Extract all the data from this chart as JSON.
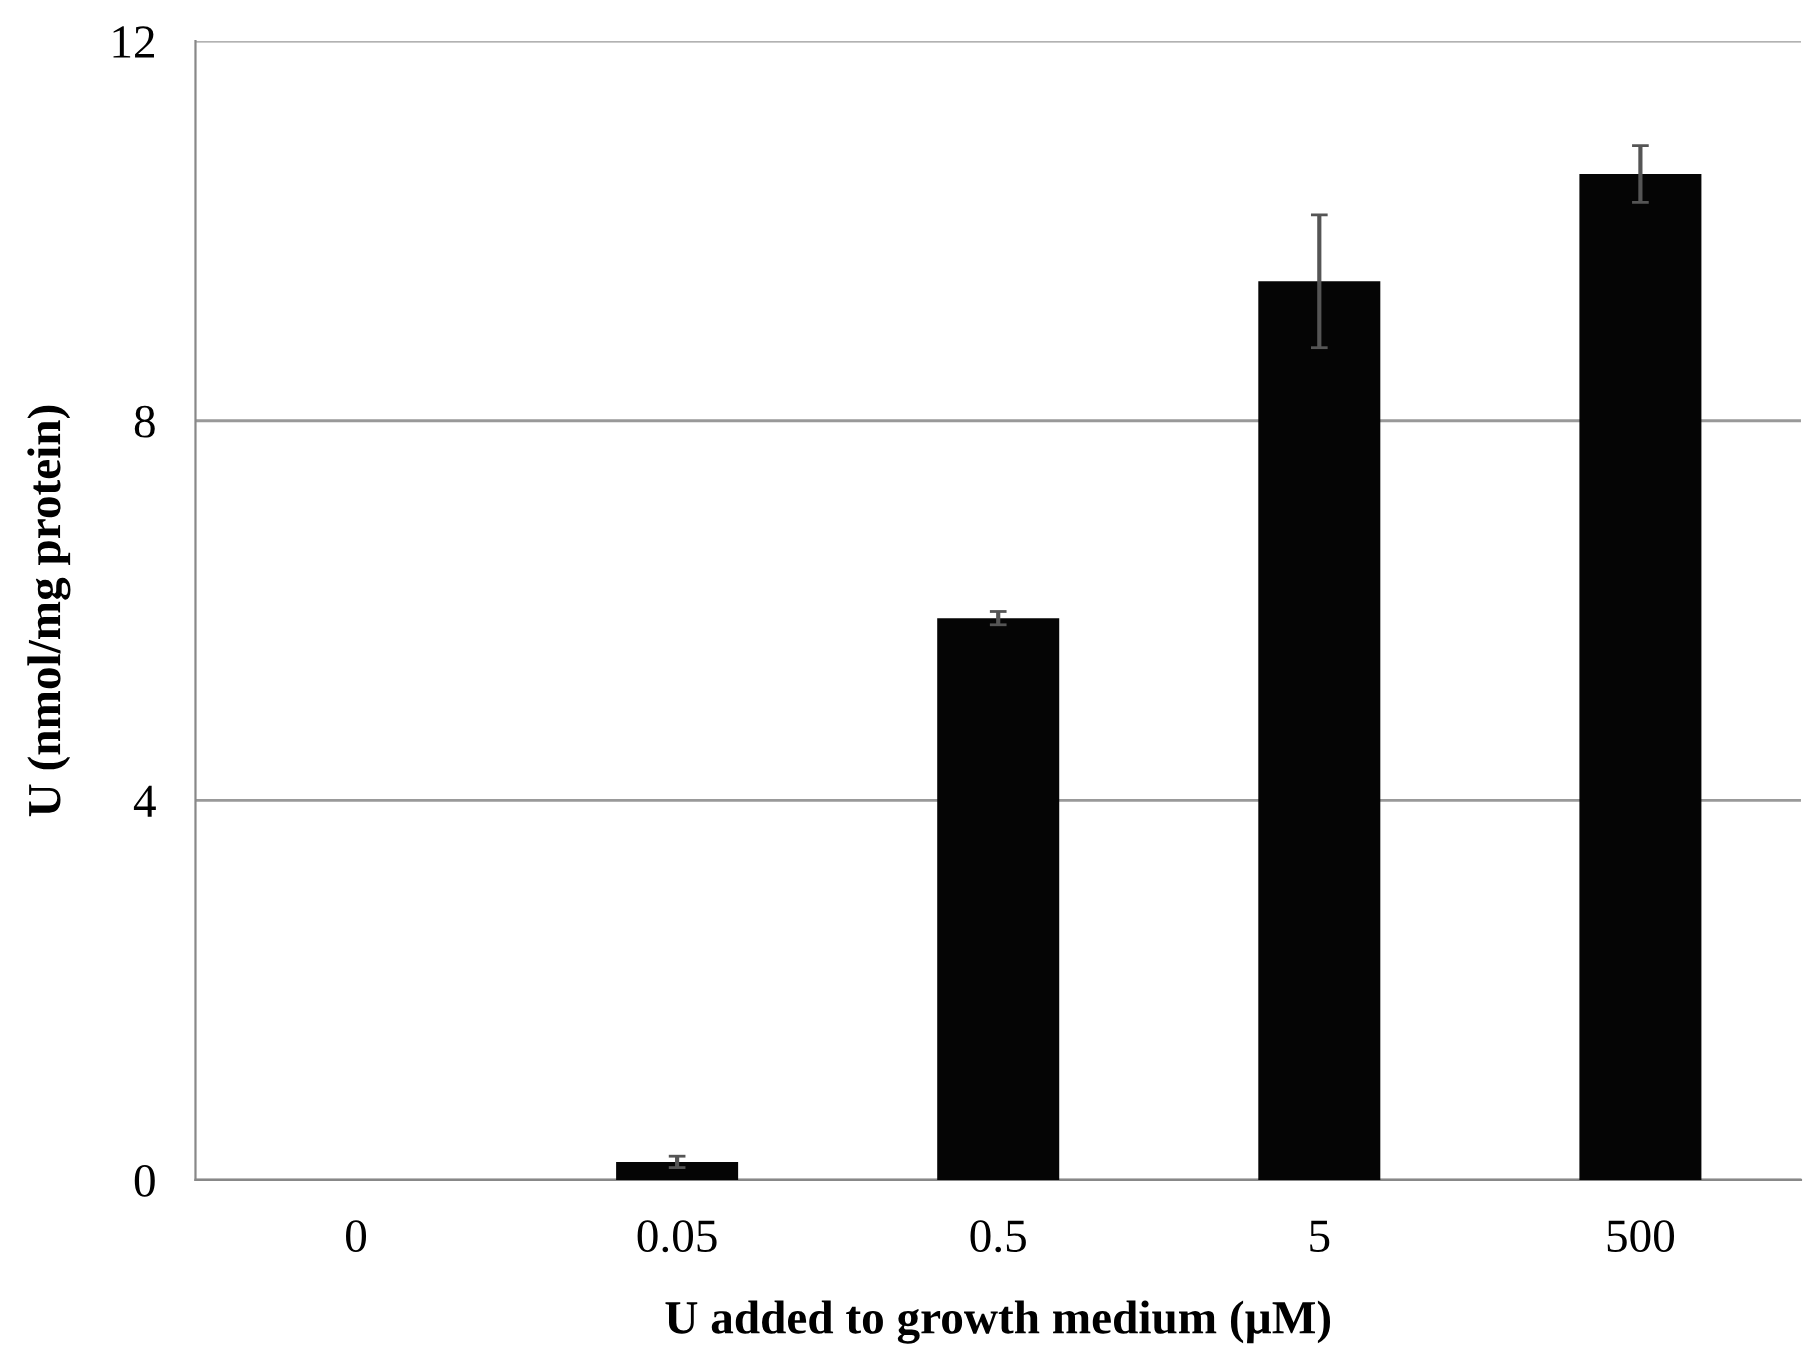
{
  "chart_data": {
    "type": "bar",
    "xlabel": "U added to growth medium (µM)",
    "ylabel": "U (nmol/mg protein)",
    "categories": [
      "0",
      "0.05",
      "0.5",
      "5",
      "500"
    ],
    "values": [
      0,
      0.19,
      5.92,
      9.47,
      10.6
    ],
    "errors": [
      null,
      0.06,
      0.07,
      0.7,
      0.3
    ],
    "color": "#050505",
    "ylim": [
      0,
      12
    ],
    "yticks": [
      0,
      4,
      8,
      12
    ],
    "grid": "y"
  }
}
